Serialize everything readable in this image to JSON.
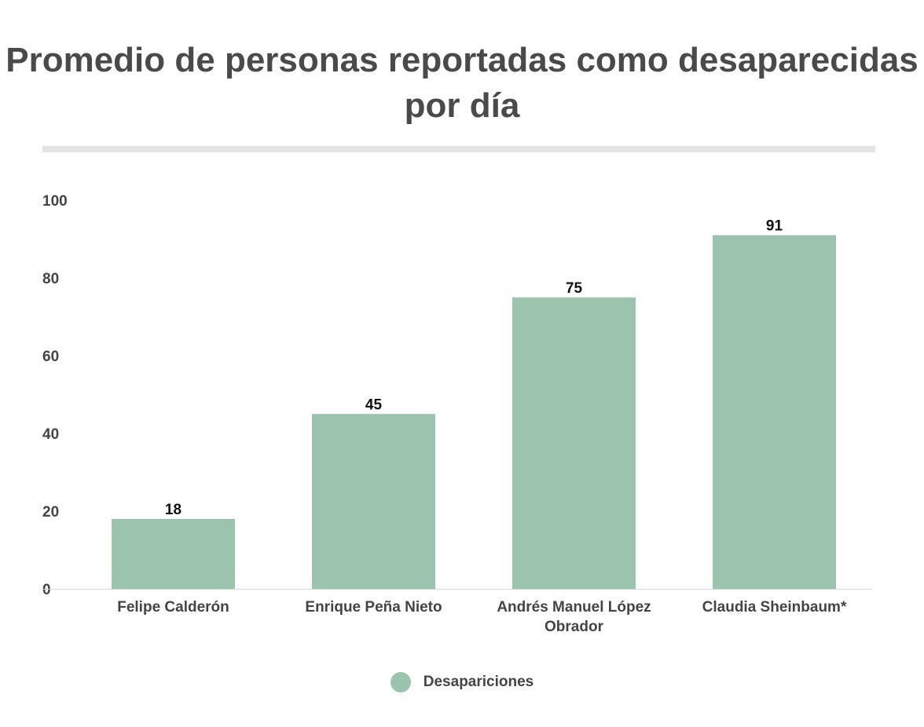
{
  "chart_data": {
    "type": "bar",
    "title": "Promedio de personas reportadas como desaparecidas por día",
    "xlabel": "",
    "ylabel": "",
    "categories": [
      [
        "Felipe Calderón"
      ],
      [
        "Enrique Peña Nieto"
      ],
      [
        "Andrés Manuel López",
        "Obrador"
      ],
      [
        "Claudia Sheinbaum*"
      ]
    ],
    "series": [
      {
        "name": "Desapariciones",
        "values": [
          18,
          45,
          75,
          91
        ],
        "color": "#9bc3ad"
      }
    ],
    "ylim": [
      0,
      100
    ],
    "yticks": [
      "0",
      "20",
      "40",
      "60",
      "80",
      "100"
    ],
    "grid": false,
    "legend": "bottom-center"
  },
  "legend": {
    "label": "Desapariciones"
  }
}
